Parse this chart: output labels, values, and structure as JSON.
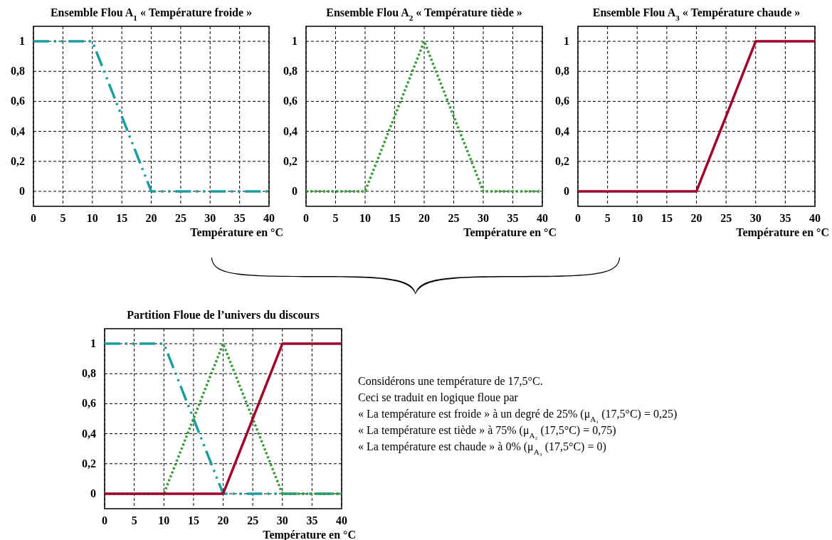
{
  "chart_data": [
    {
      "type": "line",
      "title": "Ensemble Flou A$_{1}$ « Température froide »",
      "xlabel": "Température en °C",
      "xlim": [
        0,
        40
      ],
      "xticks": [
        0,
        5,
        10,
        15,
        20,
        25,
        30,
        35,
        40
      ],
      "ylim": [
        -0.1,
        1.1
      ],
      "yticks": [
        {
          "value": 0,
          "label": "0"
        },
        {
          "value": 0.2,
          "label": "0,2"
        },
        {
          "value": 0.4,
          "label": "0,4"
        },
        {
          "value": 0.6,
          "label": "0,6"
        },
        {
          "value": 0.8,
          "label": "0,8"
        },
        {
          "value": 1,
          "label": "1"
        }
      ],
      "grid": true,
      "series": [
        {
          "color": "#1a9e9e",
          "line_style": "dashed",
          "x": [
            0,
            10,
            20,
            40
          ],
          "values": [
            1,
            1,
            0,
            0
          ]
        }
      ]
    },
    {
      "type": "line",
      "title": "Ensemble Flou A$_{2}$ « Température tiède »",
      "xlabel": "Température en °C",
      "xlim": [
        0,
        40
      ],
      "xticks": [
        0,
        5,
        10,
        15,
        20,
        25,
        30,
        35,
        40
      ],
      "ylim": [
        -0.1,
        1.1
      ],
      "yticks": [
        {
          "value": 0,
          "label": "0"
        },
        {
          "value": 0.2,
          "label": "0,2"
        },
        {
          "value": 0.4,
          "label": "0,4"
        },
        {
          "value": 0.6,
          "label": "0,6"
        },
        {
          "value": 0.8,
          "label": "0,8"
        },
        {
          "value": 1,
          "label": "1"
        }
      ],
      "grid": true,
      "series": [
        {
          "color": "#3a9a3a",
          "line_style": "dotted",
          "x": [
            0,
            10,
            20,
            30,
            40
          ],
          "values": [
            0,
            0,
            1,
            0,
            0
          ]
        }
      ]
    },
    {
      "type": "line",
      "title": "Ensemble Flou A$_{3}$ « Température chaude »",
      "xlabel": "Température en °C",
      "xlim": [
        0,
        40
      ],
      "xticks": [
        0,
        5,
        10,
        15,
        20,
        25,
        30,
        35,
        40
      ],
      "ylim": [
        -0.1,
        1.1
      ],
      "yticks": [
        {
          "value": 0,
          "label": "0"
        },
        {
          "value": 0.2,
          "label": "0,2"
        },
        {
          "value": 0.4,
          "label": "0,4"
        },
        {
          "value": 0.6,
          "label": "0,6"
        },
        {
          "value": 0.8,
          "label": "0,8"
        },
        {
          "value": 1,
          "label": "1"
        }
      ],
      "grid": true,
      "series": [
        {
          "color": "#a0002a",
          "line_style": "solid",
          "x": [
            0,
            20,
            30,
            40
          ],
          "values": [
            0,
            0,
            1,
            1
          ]
        }
      ]
    },
    {
      "type": "line",
      "title": "Partition Floue de l’univers du discours",
      "xlabel": "Température en °C",
      "xlim": [
        0,
        40
      ],
      "xticks": [
        0,
        5,
        10,
        15,
        20,
        25,
        30,
        35,
        40
      ],
      "ylim": [
        -0.1,
        1.1
      ],
      "yticks": [
        {
          "value": 0,
          "label": "0"
        },
        {
          "value": 0.2,
          "label": "0,2"
        },
        {
          "value": 0.4,
          "label": "0,4"
        },
        {
          "value": 0.6,
          "label": "0,6"
        },
        {
          "value": 0.8,
          "label": "0,8"
        },
        {
          "value": 1,
          "label": "1"
        }
      ],
      "grid": true,
      "series": [
        {
          "color": "#1a9e9e",
          "line_style": "dashed",
          "x": [
            0,
            10,
            20,
            40
          ],
          "values": [
            1,
            1,
            0,
            0
          ]
        },
        {
          "color": "#3a9a3a",
          "line_style": "dotted",
          "x": [
            0,
            10,
            20,
            30,
            40
          ],
          "values": [
            0,
            0,
            1,
            0,
            0
          ]
        },
        {
          "color": "#a0002a",
          "line_style": "solid",
          "x": [
            0,
            20,
            30,
            40
          ],
          "values": [
            0,
            0,
            1,
            1
          ]
        }
      ]
    },
    {
      "type": "other",
      "annotations": [
        "Considérons une température de 17,5°C.",
        "Ceci se traduit en logique floue par",
        "« La température est froide » à un degré de 25% (μ$_{A₁}$(17,5°C) = 0,25)",
        "«  La température est tiède » à 75% (μ$_{A₂}$(17,5°C) = 0,75)",
        "«  La température est chaude » à 0% (μ$_{A₃}$(17,5°C) = 0)"
      ]
    }
  ]
}
